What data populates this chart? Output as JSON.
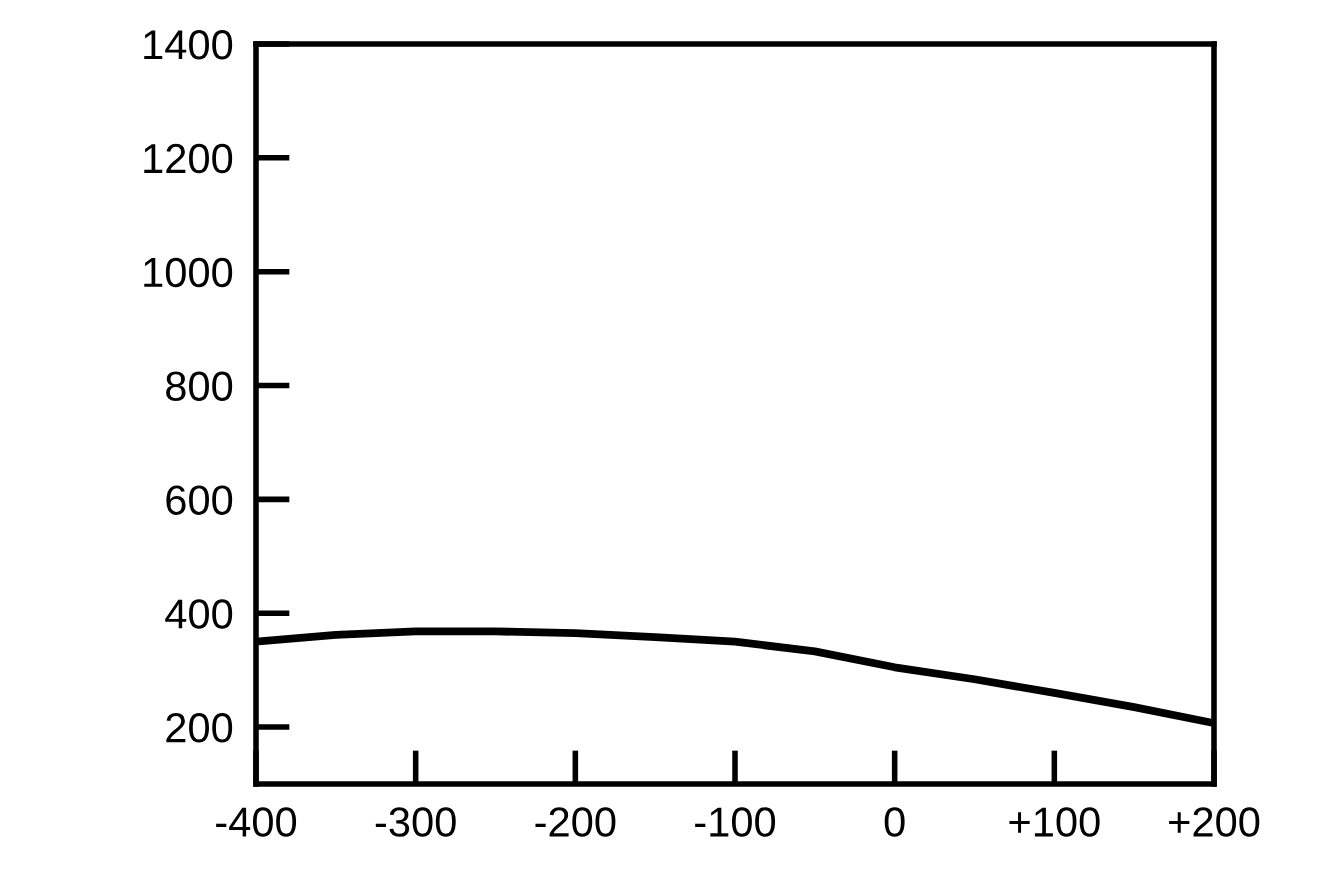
{
  "chart_data": {
    "type": "line",
    "x": [
      -400,
      -350,
      -300,
      -250,
      -200,
      -150,
      -100,
      -50,
      0,
      50,
      100,
      150,
      200
    ],
    "series": [
      {
        "color": "#000000",
        "values": [
          350,
          362,
          368,
          368,
          365,
          358,
          350,
          333,
          305,
          284,
          260,
          235,
          207
        ]
      }
    ],
    "xlim": [
      -400,
      200
    ],
    "ylim": [
      100,
      1400
    ],
    "xticks": [
      -400,
      -300,
      -200,
      -100,
      0,
      {
        "value": 100,
        "label": "+100"
      },
      {
        "value": 200,
        "label": "+200"
      }
    ],
    "yticks": [
      200,
      400,
      600,
      800,
      1000,
      1200,
      1400
    ],
    "grid": false,
    "legend": false,
    "marker": "none",
    "line_style": "solid"
  }
}
